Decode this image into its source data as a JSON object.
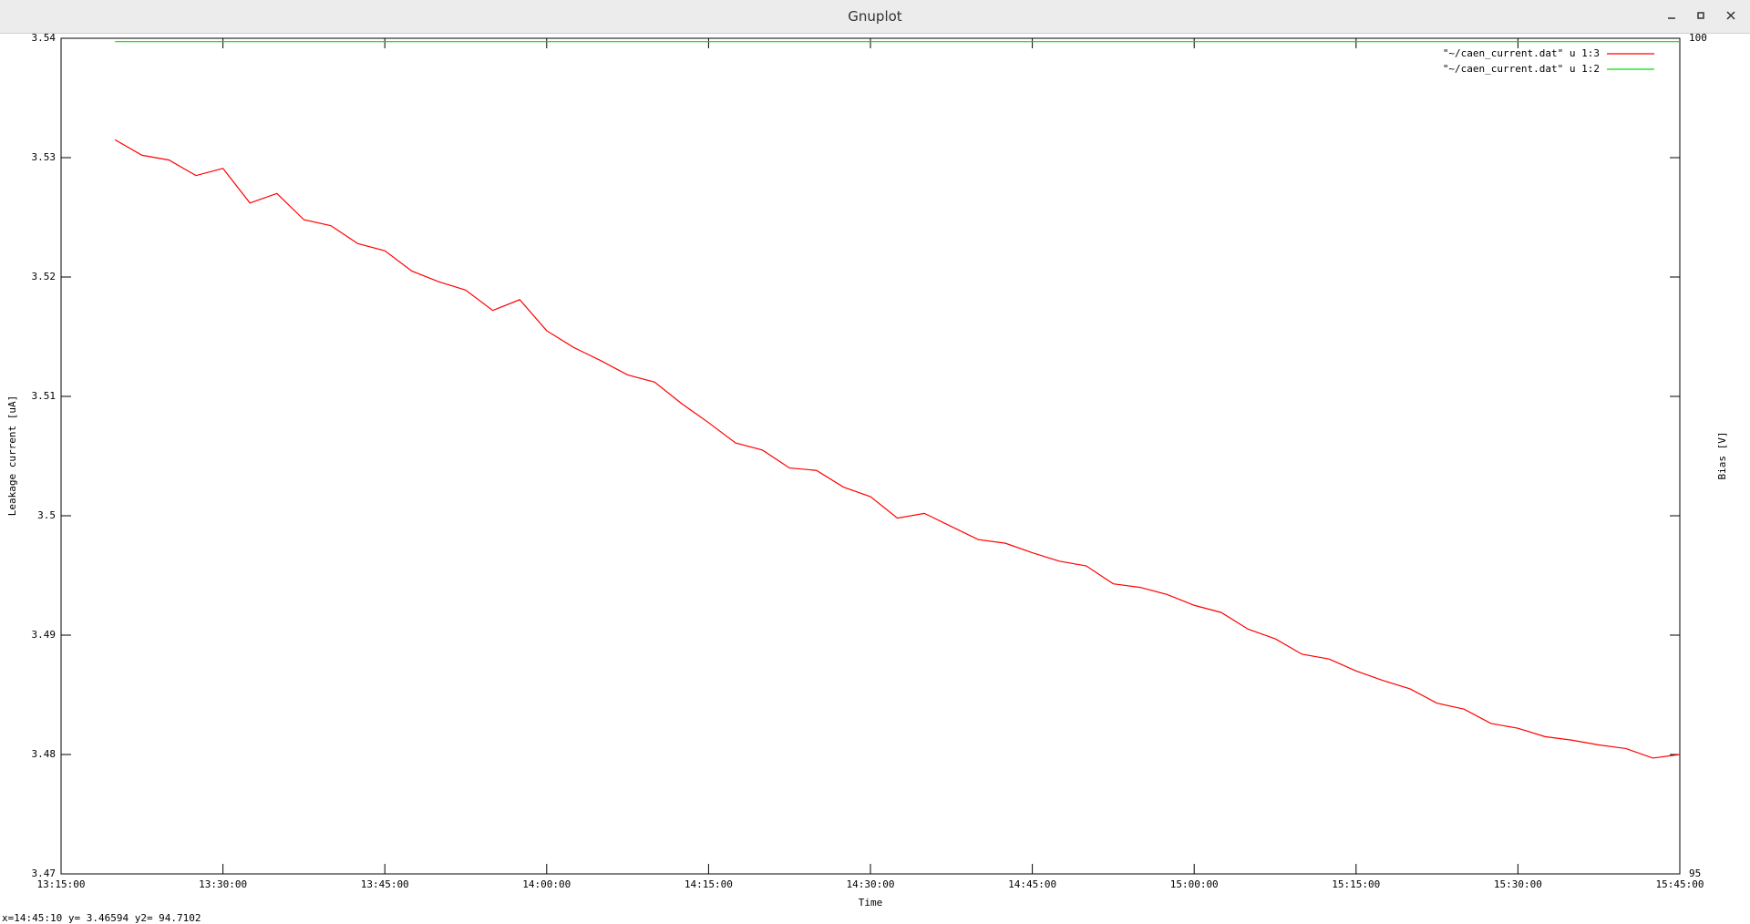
{
  "window": {
    "title": "Gnuplot"
  },
  "status": "x=14:45:10 y= 3.46594 y2= 94.7102",
  "chart_data": {
    "type": "line",
    "x_label": "Time",
    "y_label": "Leakage current [uA]",
    "y2_label": "Bias [V]",
    "x": [
      "13:20:00",
      "13:22:30",
      "13:25:00",
      "13:27:30",
      "13:30:00",
      "13:32:30",
      "13:35:00",
      "13:37:30",
      "13:40:00",
      "13:42:30",
      "13:45:00",
      "13:47:30",
      "13:50:00",
      "13:52:30",
      "13:55:00",
      "13:57:30",
      "14:00:00",
      "14:02:30",
      "14:05:00",
      "14:07:30",
      "14:10:00",
      "14:12:30",
      "14:15:00",
      "14:17:30",
      "14:20:00",
      "14:22:30",
      "14:25:00",
      "14:27:30",
      "14:30:00",
      "14:32:30",
      "14:35:00",
      "14:37:30",
      "14:40:00",
      "14:42:30",
      "14:45:00",
      "14:47:30",
      "14:50:00",
      "14:52:30",
      "14:55:00",
      "14:57:30",
      "15:00:00",
      "15:02:30",
      "15:05:00",
      "15:07:30",
      "15:10:00",
      "15:12:30",
      "15:15:00",
      "15:17:30",
      "15:20:00",
      "15:22:30",
      "15:25:00",
      "15:27:30",
      "15:30:00",
      "15:32:30",
      "15:35:00",
      "15:37:30",
      "15:40:00",
      "15:42:30",
      "15:45:00"
    ],
    "series": [
      {
        "name": "\"~/caen_current.dat\" u 1:3",
        "color": "#ff0000",
        "axis": "y",
        "values": [
          3.5315,
          3.5302,
          3.5298,
          3.5285,
          3.5291,
          3.5262,
          3.527,
          3.5248,
          3.5243,
          3.5228,
          3.5222,
          3.5205,
          3.5196,
          3.5189,
          3.5172,
          3.5181,
          3.5155,
          3.5141,
          3.513,
          3.5118,
          3.5112,
          3.5094,
          3.5078,
          3.5061,
          3.5055,
          3.504,
          3.5038,
          3.5024,
          3.5016,
          3.4998,
          3.5002,
          3.4991,
          3.498,
          3.4977,
          3.4969,
          3.4962,
          3.4958,
          3.4943,
          3.494,
          3.4934,
          3.4925,
          3.4919,
          3.4905,
          3.4897,
          3.4884,
          3.488,
          3.487,
          3.4862,
          3.4855,
          3.4843,
          3.4838,
          3.4826,
          3.4822,
          3.4815,
          3.4812,
          3.4808,
          3.4805,
          3.4797,
          3.48
        ]
      },
      {
        "name": "\"~/caen_current.dat\" u 1:2",
        "color": "#00e000",
        "axis": "y2",
        "values": [
          99.98,
          99.98,
          99.98,
          99.98,
          99.98,
          99.98,
          99.98,
          99.98,
          99.98,
          99.98,
          99.98,
          99.98,
          99.98,
          99.98,
          99.98,
          99.98,
          99.98,
          99.98,
          99.98,
          99.98,
          99.98,
          99.98,
          99.98,
          99.98,
          99.98,
          99.98,
          99.98,
          99.98,
          99.98,
          99.98,
          99.98,
          99.98,
          99.98,
          99.98,
          99.98,
          99.98,
          99.98,
          99.98,
          99.98,
          99.98,
          99.98,
          99.98,
          99.98,
          99.98,
          99.98,
          99.98,
          99.98,
          99.98,
          99.98,
          99.98,
          99.98,
          99.98,
          99.98,
          99.98,
          99.98,
          99.98,
          99.98,
          99.98,
          99.98
        ]
      }
    ],
    "xlim": [
      "13:15:00",
      "15:45:00"
    ],
    "xticks": [
      "13:15:00",
      "13:30:00",
      "13:45:00",
      "14:00:00",
      "14:15:00",
      "14:30:00",
      "14:45:00",
      "15:00:00",
      "15:15:00",
      "15:30:00",
      "15:45:00"
    ],
    "ylim": [
      3.47,
      3.54
    ],
    "yticks": [
      3.47,
      3.48,
      3.49,
      3.5,
      3.51,
      3.52,
      3.53,
      3.54
    ],
    "y2lim": [
      95,
      100
    ],
    "y2ticks": [
      95,
      100
    ],
    "legend": "upper right",
    "grid": false
  }
}
